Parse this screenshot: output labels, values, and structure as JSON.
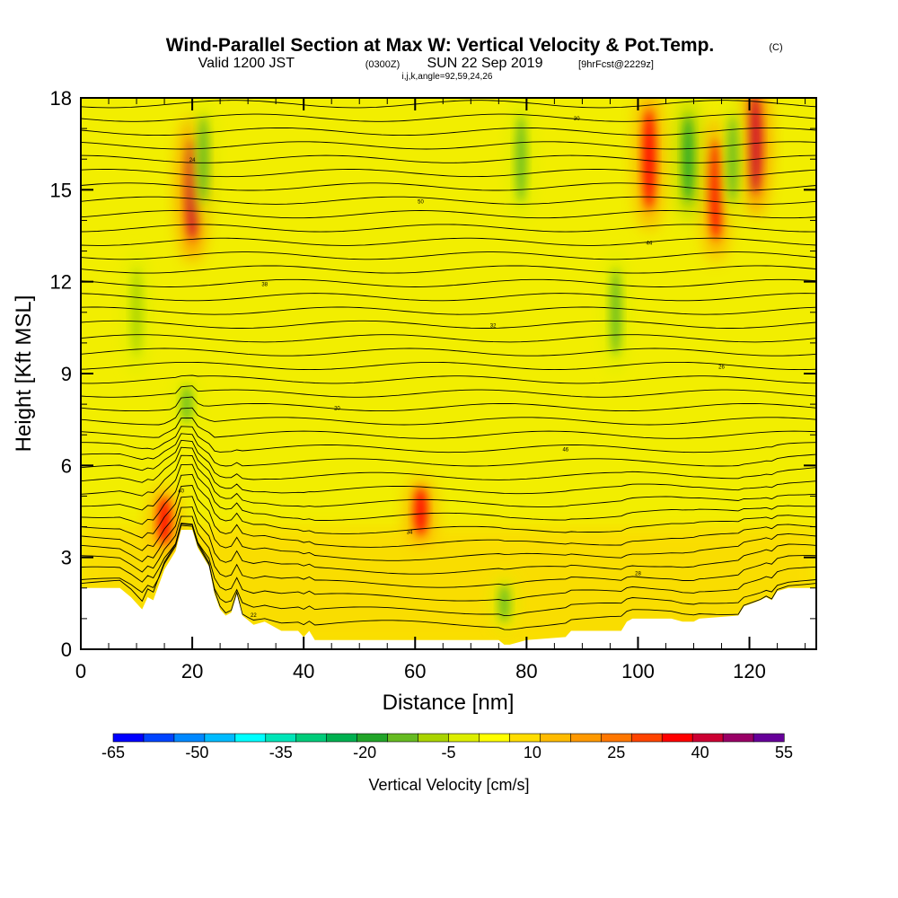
{
  "header": {
    "title": "Wind-Parallel Section at Max W: Vertical Velocity & Pot.Temp.",
    "copyright": "(C)",
    "valid_prefix": "Valid 1200 JST",
    "valid_utc": "(0300Z)",
    "valid_date": "SUN 22 Sep 2019",
    "forecast": "[9hrFcst@2229z]",
    "indices": "i,j,k,angle=92,59,24,26"
  },
  "colorbar": {
    "title": "Vertical Velocity [cm/s]",
    "colors": [
      "#0000ff",
      "#0044ff",
      "#0088ff",
      "#00bbff",
      "#00ffff",
      "#00e5b8",
      "#00cc7a",
      "#00b050",
      "#22a52a",
      "#66bb22",
      "#aad400",
      "#ddee00",
      "#ffff00",
      "#ffdd00",
      "#ffbb00",
      "#ff9900",
      "#ff7700",
      "#ff4400",
      "#ff0000",
      "#cc0033",
      "#990066",
      "#660099"
    ],
    "tick_labels": [
      "-65",
      "-50",
      "-35",
      "-20",
      "-5",
      "10",
      "25",
      "40",
      "55"
    ]
  },
  "chart_data": {
    "type": "heatmap",
    "subtype": "cross-section contour (filled vertical velocity with potential temperature isolines)",
    "xlabel": "Distance [nm]",
    "ylabel": "Height [Kft MSL]",
    "xlim": [
      0,
      132
    ],
    "ylim": [
      0,
      18
    ],
    "x_ticks": [
      0,
      20,
      40,
      60,
      80,
      100,
      120
    ],
    "y_ticks": [
      0,
      3,
      6,
      9,
      12,
      15,
      18
    ],
    "colorbar_range": [
      -65,
      55
    ],
    "updraft_cores": [
      {
        "x": 20,
        "y": 15,
        "value": 40
      },
      {
        "x": 15,
        "y": 4.2,
        "value": 35
      },
      {
        "x": 61,
        "y": 4.5,
        "value": 35
      },
      {
        "x": 102,
        "y": 16,
        "value": 35
      },
      {
        "x": 114,
        "y": 15,
        "value": 35
      },
      {
        "x": 121,
        "y": 16.5,
        "value": 40
      }
    ],
    "downdraft_cores": [
      {
        "x": 22,
        "y": 16,
        "value": -15
      },
      {
        "x": 19,
        "y": 8,
        "value": -15
      },
      {
        "x": 10,
        "y": 11,
        "value": -10
      },
      {
        "x": 79,
        "y": 16,
        "value": -15
      },
      {
        "x": 96,
        "y": 11,
        "value": -15
      },
      {
        "x": 109,
        "y": 16,
        "value": -20
      },
      {
        "x": 117,
        "y": 16,
        "value": -15
      },
      {
        "x": 76,
        "y": 1.5,
        "value": -15
      }
    ],
    "terrain_kft": [
      [
        0,
        2
      ],
      [
        7,
        2
      ],
      [
        9,
        1.7
      ],
      [
        11,
        1.3
      ],
      [
        12,
        1.7
      ],
      [
        13,
        1.6
      ],
      [
        15,
        2.6
      ],
      [
        17,
        3.2
      ],
      [
        18,
        3.9
      ],
      [
        20,
        3.9
      ],
      [
        21,
        3.3
      ],
      [
        23,
        2.7
      ],
      [
        24,
        1.8
      ],
      [
        25,
        1.3
      ],
      [
        26,
        1.1
      ],
      [
        27,
        1.2
      ],
      [
        28,
        1.8
      ],
      [
        29,
        1.1
      ],
      [
        31,
        0.8
      ],
      [
        33,
        0.9
      ],
      [
        36,
        0.6
      ],
      [
        39,
        0.6
      ],
      [
        40,
        0.4
      ],
      [
        41,
        0.6
      ],
      [
        42,
        0.3
      ],
      [
        45,
        0.3
      ],
      [
        50,
        0.3
      ],
      [
        60,
        0.3
      ],
      [
        70,
        0.3
      ],
      [
        75,
        0.3
      ],
      [
        76,
        0.15
      ],
      [
        77,
        0.15
      ],
      [
        80,
        0.3
      ],
      [
        87,
        0.4
      ],
      [
        88,
        0.6
      ],
      [
        97,
        0.6
      ],
      [
        98,
        0.9
      ],
      [
        99,
        1.0
      ],
      [
        106,
        1.0
      ],
      [
        108,
        0.9
      ],
      [
        110,
        0.9
      ],
      [
        111,
        1.0
      ],
      [
        118,
        1.1
      ],
      [
        119,
        1.4
      ],
      [
        122,
        1.6
      ],
      [
        123,
        1.7
      ],
      [
        124,
        1.6
      ],
      [
        125,
        1.9
      ],
      [
        127,
        2.0
      ],
      [
        131,
        2.0
      ],
      [
        132,
        2.0
      ]
    ],
    "isentrope_labels": [
      "20",
      "22",
      "24",
      "26",
      "28",
      "30",
      "32",
      "34",
      "36",
      "38",
      "40",
      "42",
      "44",
      "46",
      "48",
      "50"
    ]
  }
}
